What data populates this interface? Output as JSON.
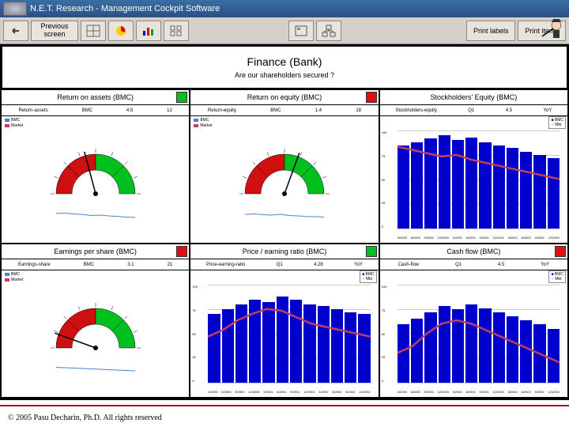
{
  "window": {
    "title": "N.E.T. Research - Management Cockpit Software"
  },
  "toolbar": {
    "previous": "Previous\nscreen",
    "print_labels": "Print labels",
    "print_items": "Print items"
  },
  "header": {
    "title": "Finance (Bank)",
    "subtitle": "Are our shareholders secured ?"
  },
  "legends": {
    "bmc": "BMC",
    "market": "Market"
  },
  "colors": {
    "green": "#00c020",
    "red": "#e01010",
    "blue": "#0000cc",
    "gauge_red": "#d01010",
    "gauge_green": "#00c020",
    "trend": "#c04060",
    "titlebar": "#3a6ea5"
  },
  "panels": [
    {
      "title": "Return on assets (BMC)",
      "indicator": "#00c020",
      "type": "gauge",
      "sub": [
        "Return-assets",
        "BMC",
        "4.5",
        "12"
      ],
      "needle_angle": -15,
      "trend_points": [
        60,
        62,
        58,
        55,
        50,
        52,
        48,
        45,
        42,
        40
      ]
    },
    {
      "title": "Return on equity (BMC)",
      "indicator": "#e01010",
      "type": "gauge",
      "sub": [
        "Return-equity",
        "BMC",
        "1.4",
        "18"
      ],
      "needle_angle": 20,
      "trend_points": [
        55,
        58,
        54,
        52,
        56,
        50,
        48,
        45,
        44,
        42
      ]
    },
    {
      "title": "Stockholders' Equity (BMC)",
      "indicator": null,
      "type": "bar",
      "sub": [
        "Stockholders-equity",
        "Q1",
        "4.5",
        "YoY"
      ],
      "values": [
        85,
        88,
        92,
        95,
        90,
        93,
        88,
        85,
        82,
        78,
        75,
        72
      ],
      "trend_points": [
        90,
        88,
        86,
        84,
        85,
        82,
        80,
        78,
        76,
        74,
        72,
        70
      ],
      "ymax": 100,
      "xlabels": [
        "3/2000",
        "6/2000",
        "9/2000",
        "12/2000",
        "3/2001",
        "6/2001",
        "9/2001",
        "12/2001",
        "3/2002",
        "6/2002",
        "9/2002",
        "12/2002"
      ]
    },
    {
      "title": "Earnings per share (BMC)",
      "indicator": "#e01010",
      "type": "gauge",
      "sub": [
        "Earnings-share",
        "BMC",
        "3.1",
        "21"
      ],
      "needle_angle": -70,
      "trend_points": [
        62,
        60,
        58,
        56,
        54,
        52,
        50,
        48,
        46,
        44
      ]
    },
    {
      "title": "Price / earning ratio (BMC)",
      "indicator": "#00c020",
      "type": "bar",
      "sub": [
        "Price-earning-ratio",
        "Q1",
        "4.28",
        "YoY"
      ],
      "values": [
        70,
        75,
        80,
        85,
        82,
        88,
        85,
        80,
        78,
        75,
        72,
        70
      ],
      "trend_points": [
        68,
        72,
        78,
        82,
        85,
        84,
        80,
        76,
        74,
        72,
        70,
        68
      ],
      "ymax": 100,
      "xlabels": [
        "3/2000",
        "6/2000",
        "9/2000",
        "12/2000",
        "3/2001",
        "6/2001",
        "9/2001",
        "12/2001",
        "3/2002",
        "6/2002",
        "9/2002",
        "12/2002"
      ]
    },
    {
      "title": "Cash flow (BMC)",
      "indicator": "#e01010",
      "type": "bar",
      "sub": [
        "Cash-flow",
        "Q1",
        "4.5",
        "YoY"
      ],
      "values": [
        60,
        65,
        72,
        78,
        75,
        80,
        76,
        72,
        68,
        64,
        60,
        55
      ],
      "trend_points": [
        58,
        62,
        70,
        76,
        78,
        76,
        72,
        68,
        64,
        60,
        56,
        52
      ],
      "ymax": 100,
      "xlabels": [
        "3/2000",
        "6/2000",
        "9/2000",
        "12/2000",
        "3/2001",
        "6/2001",
        "9/2001",
        "12/2001",
        "3/2002",
        "6/2002",
        "9/2002",
        "12/2002"
      ]
    }
  ],
  "footer": "© 2005 Pasu Decharin, Ph.D. All rights reserved"
}
